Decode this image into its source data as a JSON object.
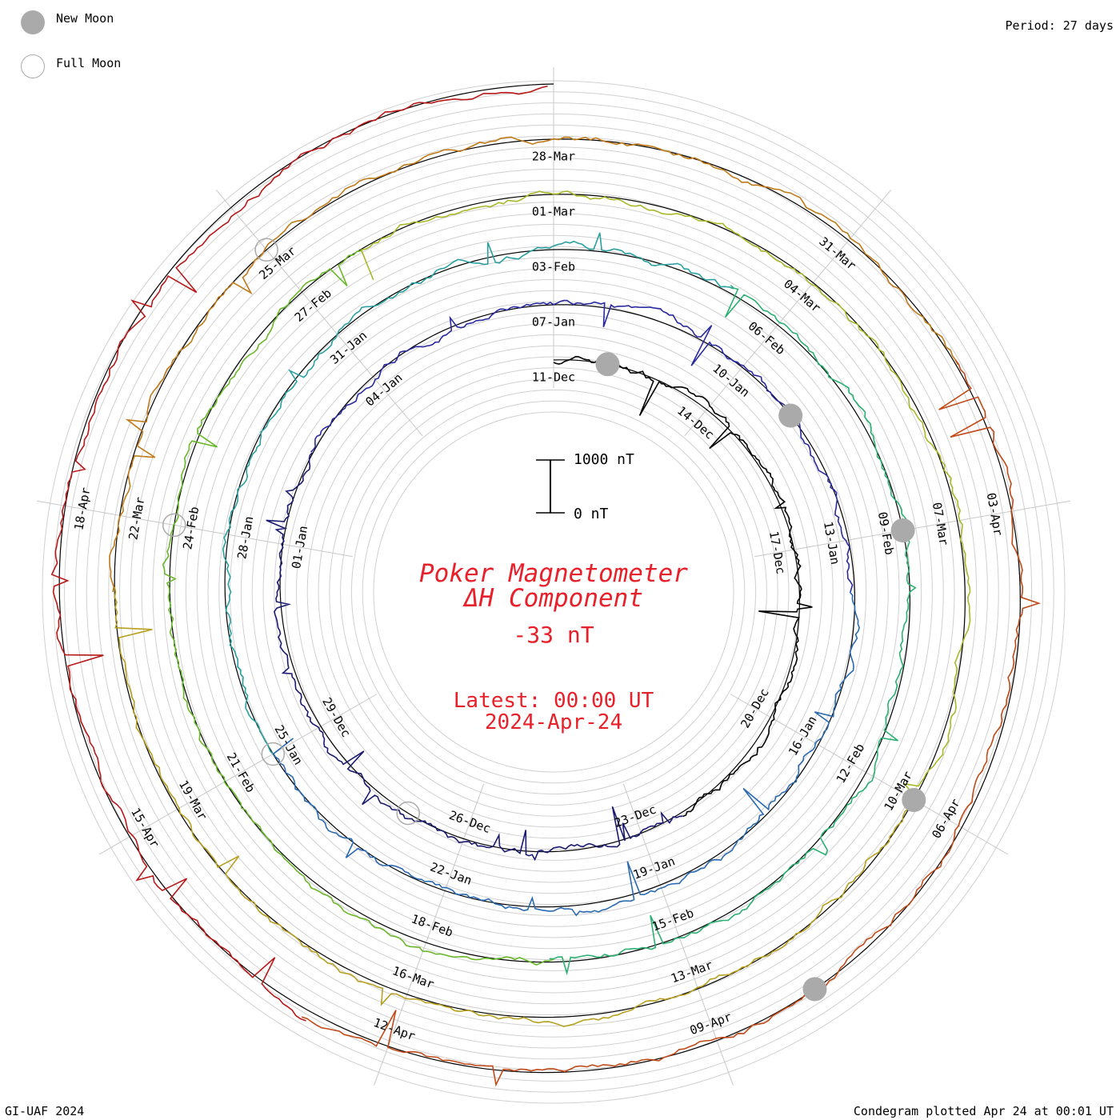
{
  "legend": {
    "new_moon_label": "New Moon",
    "full_moon_label": "Full Moon",
    "new_moon_color": "#aaaaaa",
    "full_moon_color": "#aaaaaa"
  },
  "period_text": "Period: 27 days",
  "credit": "GI-UAF 2024",
  "plotted_text": "Condegram plotted Apr 24 at 00:01 UT",
  "scale_bar": {
    "top_label": "1000 nT",
    "bottom_label": "0 nT"
  },
  "center": {
    "title_line1": "Poker Magnetometer",
    "title_line2": "ΔH Component",
    "value": "-33 nT",
    "latest_line1": "Latest: 00:00 UT",
    "latest_line2": "2024-Apr-24",
    "color": "#e8202a"
  },
  "chart_data": {
    "type": "line",
    "title": "Poker Magnetometer ΔH Component",
    "period_days": 27,
    "units": "nT",
    "start": "2023-12-11",
    "end": "2024-04-24",
    "rotations": [
      {
        "start_label": "11-Dec",
        "labels": [
          "11-Dec",
          "14-Dec",
          "17-Dec",
          "20-Dec",
          "23-Dec",
          "26-Dec",
          "29-Dec",
          "01-Jan",
          "04-Jan"
        ],
        "color": "#000000"
      },
      {
        "start_label": "07-Jan",
        "labels": [
          "07-Jan",
          "10-Jan",
          "13-Jan",
          "16-Jan",
          "19-Jan",
          "22-Jan",
          "25-Jan",
          "28-Jan",
          "31-Jan"
        ],
        "color": "#2a2a9a"
      },
      {
        "start_label": "03-Feb",
        "labels": [
          "03-Feb",
          "06-Feb",
          "09-Feb",
          "12-Feb",
          "15-Feb",
          "18-Feb",
          "21-Feb",
          "24-Feb",
          "27-Feb"
        ],
        "color": "#2a8aa8"
      },
      {
        "start_label": "01-Mar",
        "labels": [
          "01-Mar",
          "04-Mar",
          "07-Mar",
          "10-Mar",
          "13-Mar",
          "16-Mar",
          "19-Mar",
          "22-Mar",
          "25-Mar"
        ],
        "color": "#6ab82a"
      },
      {
        "start_label": "28-Mar",
        "labels": [
          "28-Mar",
          "31-Mar",
          "03-Apr",
          "06-Apr",
          "09-Apr",
          "12-Apr",
          "15-Apr",
          "18-Apr"
        ],
        "color": "#b8a020"
      }
    ],
    "gradient_colors": [
      "#000000",
      "#1a1a70",
      "#2a2aa0",
      "#2a6ab0",
      "#2aa0a0",
      "#2ab070",
      "#6ab82a",
      "#a8b828",
      "#b8a020",
      "#c07a18",
      "#c04a18",
      "#b81818"
    ],
    "new_moons": [
      "2023-12-12",
      "2024-01-11",
      "2024-02-09",
      "2024-03-10",
      "2024-04-08"
    ],
    "full_moons": [
      "2023-12-27",
      "2024-01-25",
      "2024-02-24",
      "2024-03-25"
    ],
    "baseline_nT": 0,
    "scale_bar_nT": 1000
  }
}
